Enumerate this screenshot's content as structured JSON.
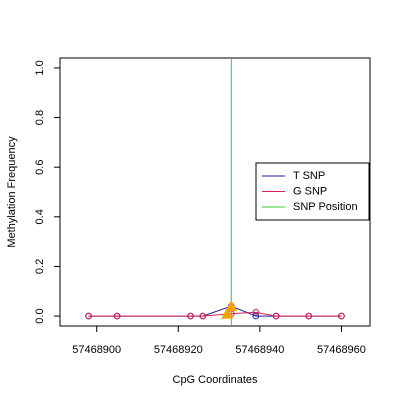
{
  "chart_data": {
    "type": "line",
    "x_label": "CpG Coordinates",
    "y_label": "Methylation Frequency",
    "xlim": [
      57468891,
      57468967
    ],
    "xticks": [
      57468900,
      57468920,
      57468940,
      57468960
    ],
    "ylim": [
      -0.04,
      1.04
    ],
    "yticks": [
      {
        "value": 0,
        "label": "0.0"
      },
      0.2,
      0.4,
      0.6,
      0.8,
      {
        "value": 1,
        "label": "1.0"
      }
    ],
    "series": [
      {
        "name": "T SNP",
        "color": "#1a1aa6",
        "x": [
          57468898,
          57468905,
          57468923,
          57468926,
          57468933,
          57468939,
          57468944,
          57468952,
          57468960
        ],
        "values": [
          0,
          0,
          0,
          0,
          0.04,
          0,
          0,
          0,
          0
        ]
      },
      {
        "name": "G SNP",
        "color": "#d62050",
        "x": [
          57468898,
          57468905,
          57468923,
          57468926,
          57468933,
          57468939,
          57468944,
          57468952,
          57468960
        ],
        "values": [
          0,
          0,
          0,
          0,
          0.01,
          0.015,
          0,
          0,
          0
        ]
      }
    ],
    "snp_line": {
      "name": "SNP Position",
      "color": "#33cc33",
      "x": 57468933
    },
    "snp_markers": {
      "color": "#f5a000",
      "x": [
        57468932,
        57468933
      ],
      "values": [
        0.01,
        0.04
      ]
    }
  }
}
